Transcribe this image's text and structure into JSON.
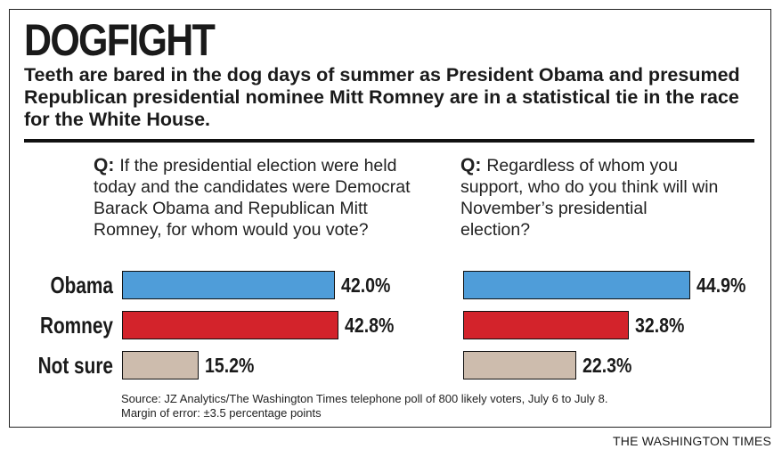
{
  "header": {
    "title": "DOGFIGHT",
    "subtitle": "Teeth are bared in the dog days of summer as President Obama and presumed Republican presidential nominee Mitt Romney are in a statistical tie in the race for the White House."
  },
  "questions": [
    {
      "prefix": "Q:",
      "text": "If the presidential election were held today and the candidates were Democrat Barack Obama and Republican Mitt Romney, for whom would you vote?"
    },
    {
      "prefix": "Q:",
      "text": "Regardless of whom you support, who do you think will win November’s presidential election?"
    }
  ],
  "chart_data": [
    {
      "type": "bar",
      "orientation": "horizontal",
      "categories": [
        "Obama",
        "Romney",
        "Not sure"
      ],
      "values": [
        42.0,
        42.8,
        15.2
      ],
      "labels": [
        "42.0%",
        "42.8%",
        "15.2%"
      ],
      "colors": [
        "#4f9dd9",
        "#d3232b",
        "#cdbcad"
      ],
      "xlim": [
        0,
        100
      ],
      "grid": false
    },
    {
      "type": "bar",
      "orientation": "horizontal",
      "categories": [
        "Obama",
        "Romney",
        "Not sure"
      ],
      "values": [
        44.9,
        32.8,
        22.3
      ],
      "labels": [
        "44.9%",
        "32.8%",
        "22.3%"
      ],
      "colors": [
        "#4f9dd9",
        "#d3232b",
        "#cdbcad"
      ],
      "xlim": [
        0,
        100
      ],
      "grid": false
    }
  ],
  "footer": {
    "source": "Source: JZ Analytics/The Washington Times telephone poll of 800 likely voters, July 6 to July 8.",
    "margin": "Margin of error: ±3.5 percentage points",
    "credit": "THE WASHINGTON TIMES"
  }
}
